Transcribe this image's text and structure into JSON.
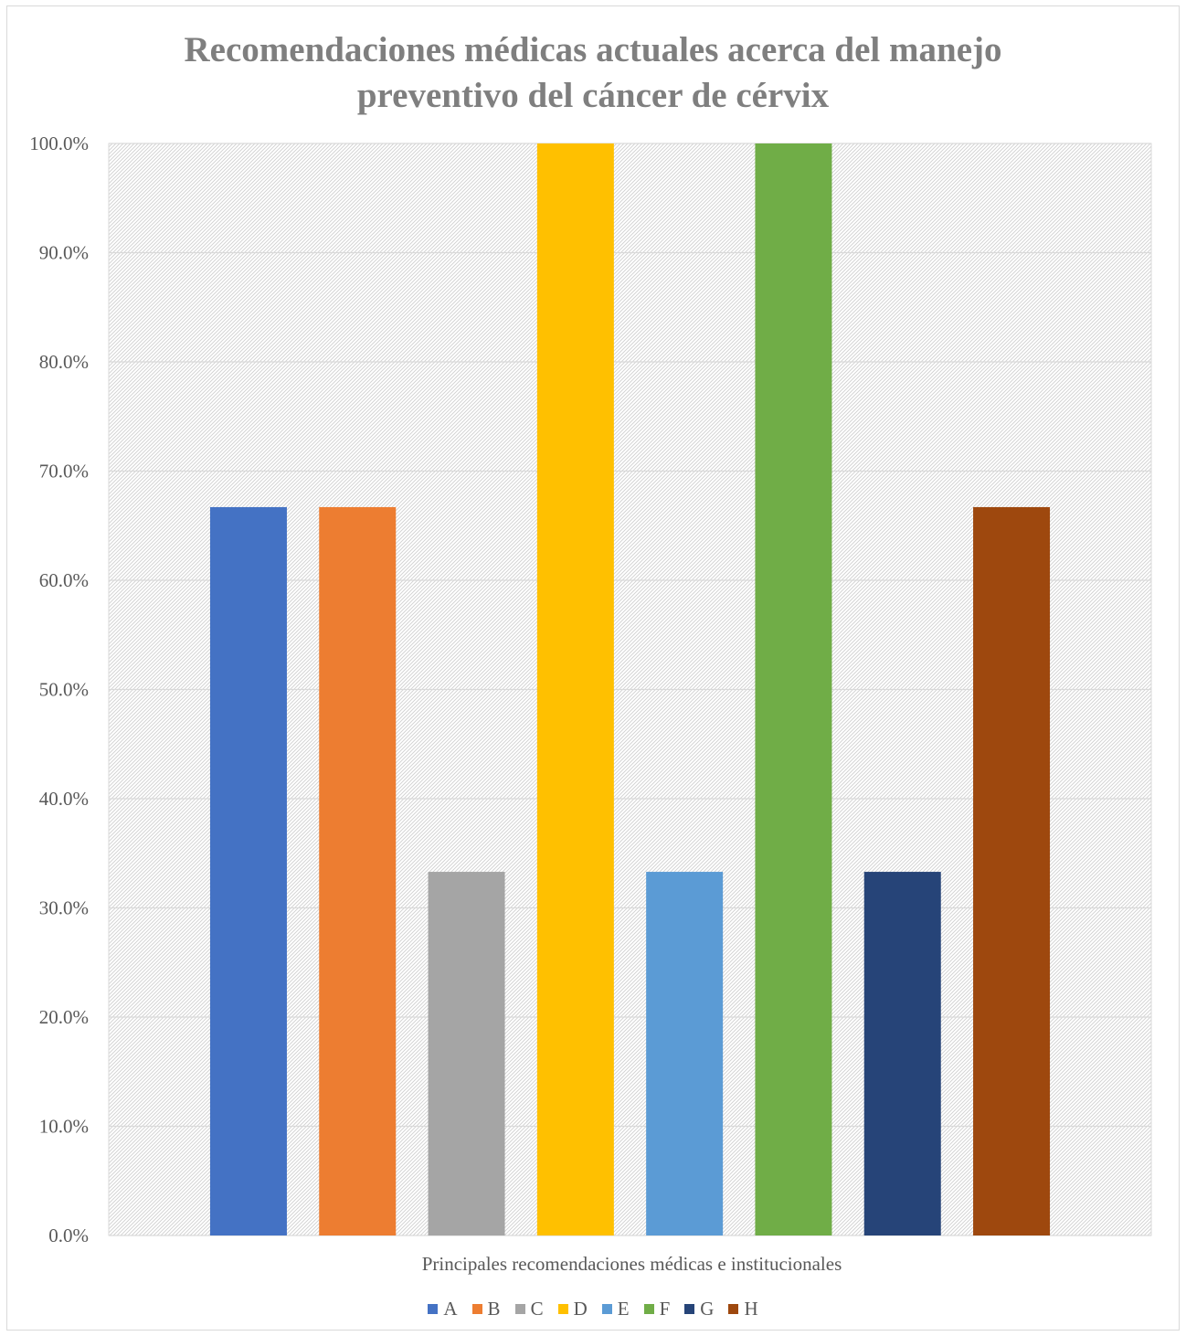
{
  "chart_data": {
    "type": "bar",
    "title": [
      "Recomendaciones médicas actuales acerca del manejo",
      "preventivo del cáncer de cérvix"
    ],
    "xlabel": "Principales recomendaciones médicas e institucionales",
    "ylabel": "",
    "ylim": [
      0,
      100
    ],
    "yticks": [
      "0.0%",
      "10.0%",
      "20.0%",
      "30.0%",
      "40.0%",
      "50.0%",
      "60.0%",
      "70.0%",
      "80.0%",
      "90.0%",
      "100.0%"
    ],
    "grid": true,
    "legend_position": "bottom",
    "series": [
      {
        "name": "A",
        "value": 66.7,
        "color": "#4472C4"
      },
      {
        "name": "B",
        "value": 66.7,
        "color": "#ED7D31"
      },
      {
        "name": "C",
        "value": 33.3,
        "color": "#A5A5A5"
      },
      {
        "name": "D",
        "value": 100.0,
        "color": "#FFC000"
      },
      {
        "name": "E",
        "value": 33.3,
        "color": "#5B9BD5"
      },
      {
        "name": "F",
        "value": 100.0,
        "color": "#70AD47"
      },
      {
        "name": "G",
        "value": 33.3,
        "color": "#264478"
      },
      {
        "name": "H",
        "value": 66.7,
        "color": "#9E480E"
      }
    ]
  }
}
